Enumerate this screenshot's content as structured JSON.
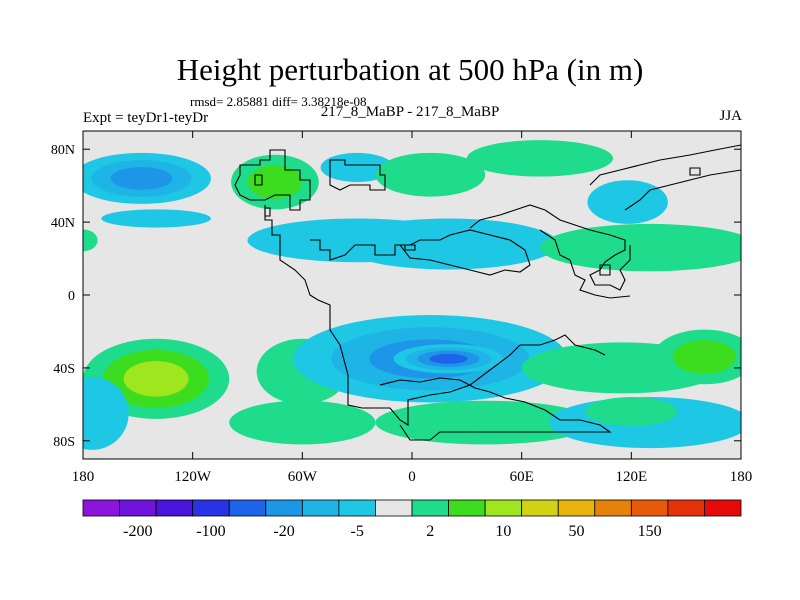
{
  "chart_data": {
    "type": "heatmap",
    "title": "Height perturbation at 500 hPa (in m)",
    "rmsd_text": "rmsd= 2.85881 diff= 3.38218e-08",
    "left_label": "Expt = teyDr1-teyDr",
    "center_label": "217_8_MaBP - 217_8_MaBP",
    "right_label": "JJA",
    "x_ticks": [
      "180",
      "120W",
      "60W",
      "0",
      "60E",
      "120E",
      "180"
    ],
    "y_ticks": [
      "80N",
      "40N",
      "0",
      "40S",
      "80S"
    ],
    "xlim": [
      -180,
      180
    ],
    "ylim": [
      -90,
      90
    ],
    "colorbar": {
      "colors": [
        "#8c14dc",
        "#6e14dc",
        "#4b14dc",
        "#2832e6",
        "#1e64ea",
        "#1e96e8",
        "#1eb4e6",
        "#1ec8e4",
        "#e6e6e6",
        "#1edc8c",
        "#3cdc1e",
        "#a0e61e",
        "#d2d214",
        "#e6b40a",
        "#e6820a",
        "#e65a0a",
        "#e6320a",
        "#e60a0a"
      ],
      "tick_labels": [
        "-200",
        "-100",
        "-20",
        "-5",
        "2",
        "10",
        "50",
        "150"
      ]
    },
    "anomalies": [
      {
        "lon": -148,
        "lat": 64,
        "rlon": 38,
        "rlat": 14,
        "level": -3
      },
      {
        "lon": -140,
        "lat": 42,
        "rlon": 30,
        "rlat": 5,
        "level": -1
      },
      {
        "lon": -75,
        "lat": 62,
        "rlon": 24,
        "rlat": 15,
        "level": 2
      },
      {
        "lon": -30,
        "lat": 70,
        "rlon": 20,
        "rlat": 8,
        "level": -1
      },
      {
        "lon": 10,
        "lat": 66,
        "rlon": 30,
        "rlat": 12,
        "level": 1
      },
      {
        "lon": 70,
        "lat": 75,
        "rlon": 40,
        "rlat": 10,
        "level": 1
      },
      {
        "lon": 118,
        "lat": 51,
        "rlon": 22,
        "rlat": 12,
        "level": -1
      },
      {
        "lon": -30,
        "lat": 30,
        "rlon": 60,
        "rlat": 12,
        "level": -1
      },
      {
        "lon": 20,
        "lat": 28,
        "rlon": 60,
        "rlat": 14,
        "level": -1
      },
      {
        "lon": 130,
        "lat": 26,
        "rlon": 60,
        "rlat": 13,
        "level": 1
      },
      {
        "lon": -180,
        "lat": 30,
        "rlon": 8,
        "rlat": 6,
        "level": 1
      },
      {
        "lon": -140,
        "lat": -46,
        "rlon": 40,
        "rlat": 22,
        "level": 3
      },
      {
        "lon": -60,
        "lat": -42,
        "rlon": 25,
        "rlat": 18,
        "level": 1
      },
      {
        "lon": 10,
        "lat": -35,
        "rlon": 75,
        "rlat": 24,
        "level": -3
      },
      {
        "lon": 20,
        "lat": -35,
        "rlon": 30,
        "rlat": 8,
        "level": -4
      },
      {
        "lon": 115,
        "lat": -40,
        "rlon": 55,
        "rlat": 14,
        "level": 1
      },
      {
        "lon": 160,
        "lat": -34,
        "rlon": 28,
        "rlat": 15,
        "level": 2
      },
      {
        "lon": -175,
        "lat": -65,
        "rlon": 20,
        "rlat": 20,
        "level": -1
      },
      {
        "lon": -60,
        "lat": -70,
        "rlon": 40,
        "rlat": 12,
        "level": 1
      },
      {
        "lon": 40,
        "lat": -70,
        "rlon": 60,
        "rlat": 12,
        "level": 1
      },
      {
        "lon": 130,
        "lat": -70,
        "rlon": 55,
        "rlat": 14,
        "level": -1
      },
      {
        "lon": 120,
        "lat": -64,
        "rlon": 25,
        "rlat": 8,
        "level": 1
      }
    ]
  }
}
